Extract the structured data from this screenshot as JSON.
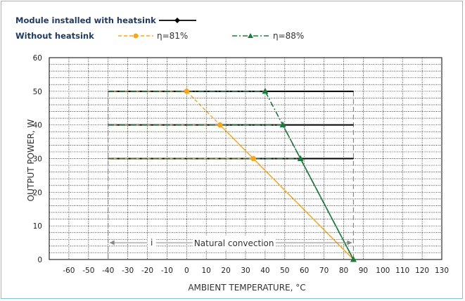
{
  "legend": {
    "with_heatsink": "Module installed with heatsink",
    "without_heatsink": "Without heatsink",
    "series_81": "η=81%",
    "series_88": "η=88%"
  },
  "colors": {
    "with_heatsink": "#000000",
    "eff_81": "#f5a623",
    "eff_88": "#1e7a3a",
    "frame": "#7fc4cc",
    "grid": "#000000"
  },
  "chart_data": {
    "type": "line",
    "xlabel": "AMBIENT TEMPERATURE, °C",
    "ylabel": "OUTPUT POWER, W",
    "xlim": [
      -70,
      130
    ],
    "ylim": [
      0,
      60
    ],
    "xticks": [
      -60,
      -50,
      -40,
      -30,
      -20,
      -10,
      0,
      10,
      20,
      30,
      40,
      50,
      60,
      70,
      80,
      90,
      100,
      110,
      120,
      130
    ],
    "yticks": [
      0,
      10,
      20,
      30,
      40,
      50,
      60
    ],
    "grid": true,
    "legend_position": "top",
    "series": [
      {
        "name": "Module installed with heatsink",
        "style": "solid",
        "color": "#000000",
        "segments": [
          {
            "x": [
              -40,
              85
            ],
            "y": [
              50,
              50
            ]
          },
          {
            "x": [
              -40,
              85
            ],
            "y": [
              40,
              40
            ]
          },
          {
            "x": [
              -40,
              85
            ],
            "y": [
              30,
              30
            ]
          }
        ]
      },
      {
        "name": "η=81%",
        "style": "dashed",
        "color": "#f5a623",
        "marker": "circle",
        "segments": [
          {
            "x": [
              -40,
              0,
              85
            ],
            "y": [
              50,
              50,
              0
            ]
          },
          {
            "x": [
              -40,
              17,
              85
            ],
            "y": [
              40,
              40,
              0
            ]
          },
          {
            "x": [
              -40,
              34,
              85
            ],
            "y": [
              30,
              30,
              0
            ]
          }
        ],
        "markers": [
          [
            0,
            50
          ],
          [
            17,
            40
          ],
          [
            34,
            30
          ]
        ]
      },
      {
        "name": "η=88%",
        "style": "dashdot",
        "color": "#1e7a3a",
        "marker": "triangle",
        "segments": [
          {
            "x": [
              -40,
              40,
              85
            ],
            "y": [
              50,
              50,
              0
            ]
          },
          {
            "x": [
              -40,
              49,
              85
            ],
            "y": [
              40,
              40,
              0
            ]
          },
          {
            "x": [
              -40,
              58,
              85
            ],
            "y": [
              30,
              30,
              0
            ]
          }
        ],
        "markers": [
          [
            40,
            50
          ],
          [
            49,
            40
          ],
          [
            58,
            30
          ],
          [
            85,
            0
          ]
        ]
      }
    ],
    "annotations": {
      "range_label": "i",
      "range_text": "Natural convection",
      "range": [
        -40,
        85
      ],
      "range_y": 5
    }
  }
}
